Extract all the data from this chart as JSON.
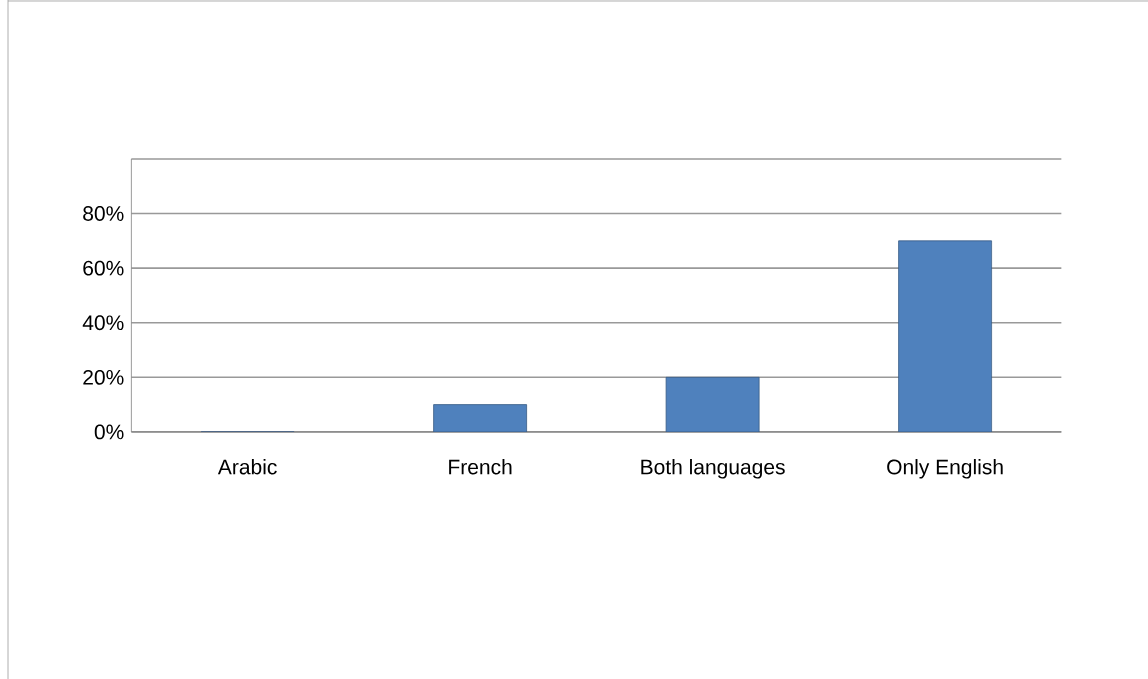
{
  "chart_data": {
    "type": "bar",
    "categories": [
      "Arabic",
      "French",
      "Both languages",
      "Only English"
    ],
    "values": [
      0,
      10,
      20,
      70
    ],
    "color": "#4f81bd",
    "ylim": [
      0,
      100
    ],
    "yticks": [
      {
        "value": 0,
        "label": "0%"
      },
      {
        "value": 20,
        "label": "20%"
      },
      {
        "value": 40,
        "label": "40%"
      },
      {
        "value": 60,
        "label": "60%"
      },
      {
        "value": 80,
        "label": "80%"
      },
      {
        "value": 100,
        "label": null
      }
    ],
    "grid": "y"
  }
}
